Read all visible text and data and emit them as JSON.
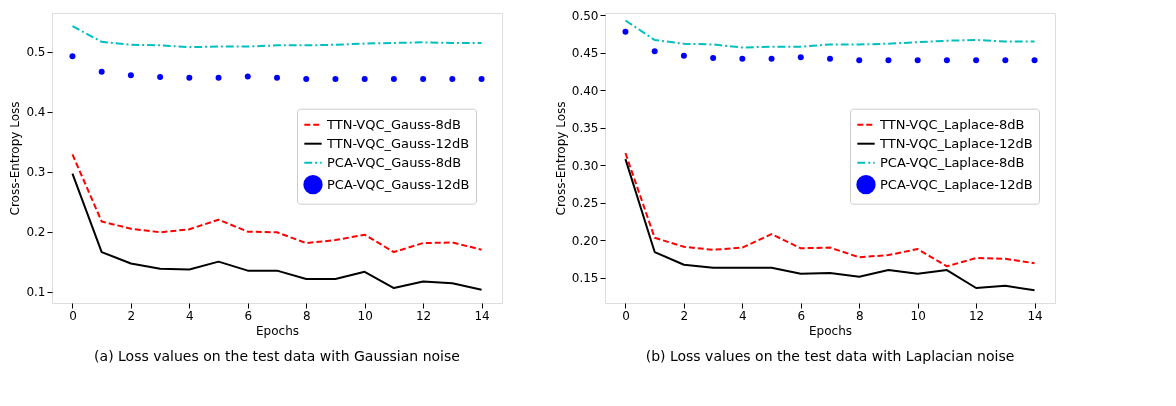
{
  "chart_data": [
    {
      "type": "line",
      "title": "(a) Loss values on the test data with Gaussian noise",
      "xlabel": "Epochs",
      "ylabel": "Cross-Entropy Loss",
      "x": [
        0,
        1,
        2,
        3,
        4,
        5,
        6,
        7,
        8,
        9,
        10,
        11,
        12,
        13,
        14
      ],
      "series": [
        {
          "name": "TTN-VQC_Gauss-8dB",
          "color": "#ff0000",
          "line_style": "dashed",
          "values": [
            0.329,
            0.217,
            0.205,
            0.199,
            0.204,
            0.22,
            0.2,
            0.199,
            0.181,
            0.186,
            0.195,
            0.166,
            0.181,
            0.182,
            0.17
          ]
        },
        {
          "name": "TTN-VQC_Gauss-12dB",
          "color": "#000000",
          "line_style": "solid",
          "values": [
            0.297,
            0.166,
            0.147,
            0.138,
            0.137,
            0.15,
            0.135,
            0.135,
            0.121,
            0.121,
            0.133,
            0.106,
            0.117,
            0.114,
            0.103
          ]
        },
        {
          "name": "PCA-VQC_Gauss-8dB",
          "color": "#00bfbf",
          "line_style": "dashdot",
          "values": [
            0.543,
            0.517,
            0.512,
            0.511,
            0.508,
            0.509,
            0.509,
            0.511,
            0.511,
            0.512,
            0.514,
            0.515,
            0.516,
            0.515,
            0.515
          ]
        },
        {
          "name": "PCA-VQC_Gauss-12dB",
          "color": "#0000ff",
          "type": "scatter",
          "marker": "circle",
          "values": [
            0.493,
            0.467,
            0.461,
            0.458,
            0.457,
            0.457,
            0.459,
            0.457,
            0.455,
            0.455,
            0.455,
            0.455,
            0.455,
            0.455,
            0.455
          ]
        }
      ],
      "xlim": [
        -0.7,
        14.7
      ],
      "ylim": [
        0.081,
        0.565
      ],
      "xticks": [
        0,
        2,
        4,
        6,
        8,
        10,
        12,
        14
      ],
      "yticks": [
        0.1,
        0.2,
        0.3,
        0.4,
        0.5
      ],
      "legend": "right",
      "grid": false
    },
    {
      "type": "line",
      "title": "(b) Loss values on the test data with Laplacian noise",
      "xlabel": "Epochs",
      "ylabel": "Cross-Entropy Loss",
      "x": [
        0,
        1,
        2,
        3,
        4,
        5,
        6,
        7,
        8,
        9,
        10,
        11,
        12,
        13,
        14
      ],
      "series": [
        {
          "name": "TTN-VQC_Laplace-8dB",
          "color": "#ff0000",
          "line_style": "dashed",
          "values": [
            0.316,
            0.203,
            0.191,
            0.187,
            0.19,
            0.208,
            0.189,
            0.19,
            0.177,
            0.18,
            0.188,
            0.165,
            0.176,
            0.175,
            0.169
          ]
        },
        {
          "name": "TTN-VQC_Laplace-12dB",
          "color": "#000000",
          "line_style": "solid",
          "values": [
            0.308,
            0.184,
            0.167,
            0.163,
            0.163,
            0.163,
            0.155,
            0.156,
            0.151,
            0.16,
            0.155,
            0.16,
            0.136,
            0.139,
            0.133
          ]
        },
        {
          "name": "PCA-VQC_Laplace-8dB",
          "color": "#00bfbf",
          "line_style": "dashdot",
          "values": [
            0.493,
            0.467,
            0.462,
            0.461,
            0.457,
            0.458,
            0.458,
            0.461,
            0.461,
            0.462,
            0.464,
            0.466,
            0.467,
            0.465,
            0.465
          ]
        },
        {
          "name": "PCA-VQC_Laplace-12dB",
          "color": "#0000ff",
          "type": "scatter",
          "marker": "circle",
          "values": [
            0.478,
            0.452,
            0.446,
            0.443,
            0.442,
            0.442,
            0.444,
            0.442,
            0.44,
            0.44,
            0.44,
            0.44,
            0.44,
            0.44,
            0.44
          ]
        }
      ],
      "xlim": [
        -0.7,
        14.7
      ],
      "ylim": [
        0.116,
        0.503
      ],
      "xticks": [
        0,
        2,
        4,
        6,
        8,
        10,
        12,
        14
      ],
      "yticks": [
        {
          "value": 0.15,
          "label": "0.15"
        },
        {
          "value": 0.2,
          "label": "0.20"
        },
        {
          "value": 0.25,
          "label": "0.25"
        },
        {
          "value": 0.3,
          "label": "0.30"
        },
        {
          "value": 0.35,
          "label": "0.35"
        },
        {
          "value": 0.4,
          "label": "0.40"
        },
        {
          "value": 0.45,
          "label": "0.45"
        },
        {
          "value": 0.5,
          "label": "0.50"
        }
      ],
      "legend": "right",
      "grid": false
    }
  ]
}
